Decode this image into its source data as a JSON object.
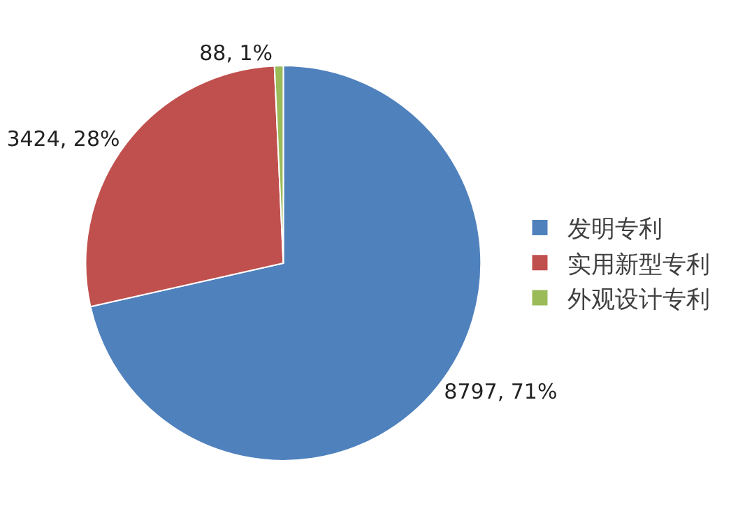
{
  "chart_data": {
    "type": "pie",
    "categories": [
      "发明专利",
      "实用新型专利",
      "外观设计专利"
    ],
    "values": [
      8797,
      3424,
      88
    ],
    "colors": [
      "#4f81bd",
      "#c0504d",
      "#9bbb59"
    ],
    "value_labels": [
      "8797, 71%",
      "3424, 28%",
      "88, 1%"
    ],
    "legend": "right"
  }
}
